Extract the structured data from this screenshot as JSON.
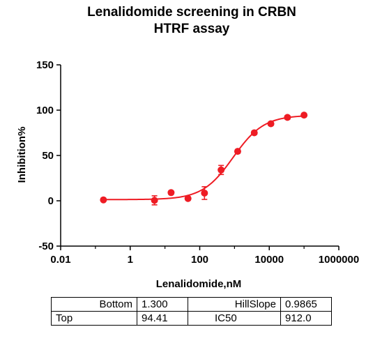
{
  "chart_data": {
    "type": "scatter",
    "title_lines": [
      "Lenalidomide screening in CRBN",
      "HTRF assay"
    ],
    "xlabel": "Lenalidomide,nM",
    "ylabel": "Inhibition%",
    "x_scale": "log",
    "xlim": [
      0.01,
      1000000
    ],
    "ylim": [
      -50,
      150
    ],
    "x_ticks": [
      {
        "value": 0.01,
        "label": "0.01"
      },
      {
        "value": 1,
        "label": "1"
      },
      {
        "value": 100,
        "label": "100"
      },
      {
        "value": 10000,
        "label": "10000"
      },
      {
        "value": 1000000,
        "label": "1000000"
      }
    ],
    "y_ticks": [
      {
        "value": -50,
        "label": "-50"
      },
      {
        "value": 0,
        "label": "0"
      },
      {
        "value": 50,
        "label": "50"
      },
      {
        "value": 100,
        "label": "100"
      },
      {
        "value": 150,
        "label": "150"
      }
    ],
    "color": "#ee1c24",
    "series": [
      {
        "points": [
          {
            "x": 0.17,
            "y": 1,
            "err": 0
          },
          {
            "x": 5,
            "y": 0.5,
            "err": 5
          },
          {
            "x": 15,
            "y": 9,
            "err": 2
          },
          {
            "x": 46,
            "y": 2.5,
            "err": 2
          },
          {
            "x": 137,
            "y": 8.5,
            "err": 7
          },
          {
            "x": 412,
            "y": 34,
            "err": 5
          },
          {
            "x": 1235,
            "y": 54.5,
            "err": 2
          },
          {
            "x": 3704,
            "y": 75,
            "err": 2
          },
          {
            "x": 11111,
            "y": 85,
            "err": 2
          },
          {
            "x": 33333,
            "y": 92,
            "err": 2
          },
          {
            "x": 100000,
            "y": 94.5,
            "err": 1.5
          }
        ]
      }
    ],
    "fit": {
      "bottom": 1.3,
      "top": 94.41,
      "ic50": 912.0,
      "hillslope": 0.9865
    }
  },
  "params_table": [
    [
      "Bottom",
      "1.300",
      "HillSlope",
      "0.9865"
    ],
    [
      "Top",
      "94.41",
      "IC50",
      "912.0"
    ]
  ]
}
